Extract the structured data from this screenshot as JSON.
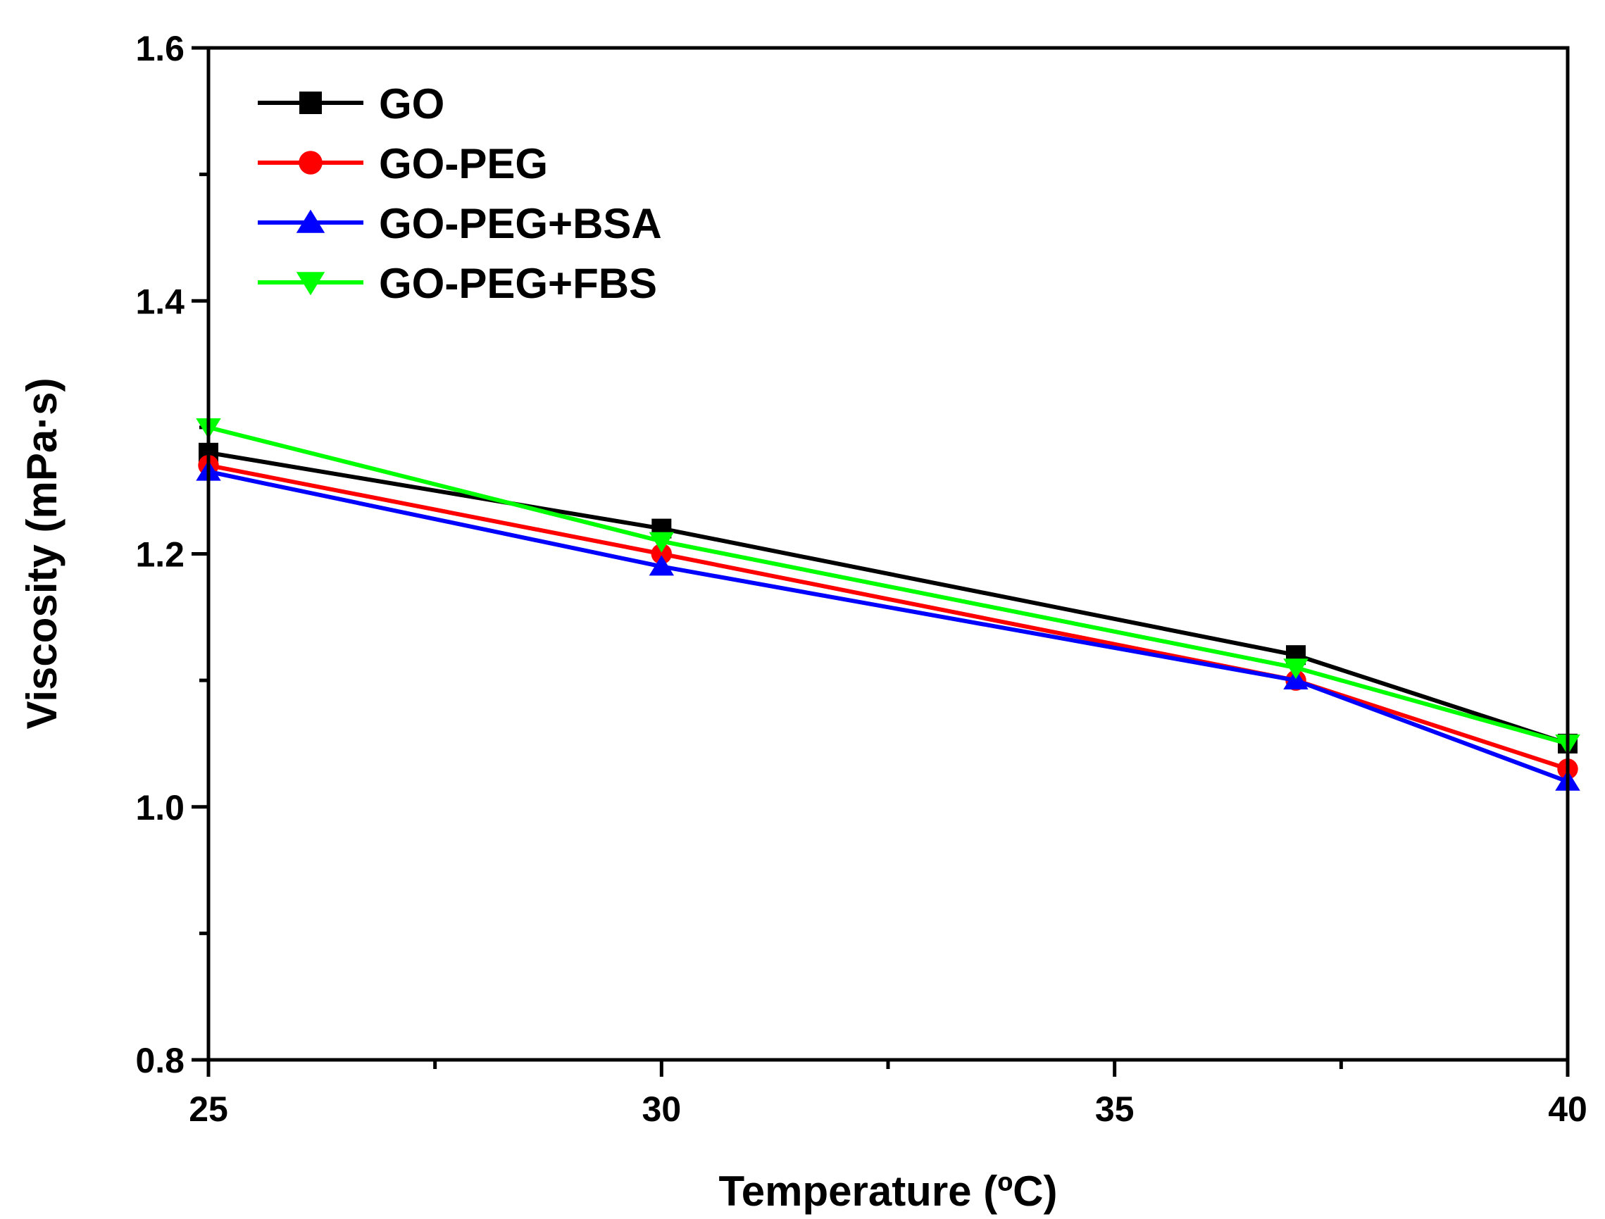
{
  "chart_data": {
    "type": "line",
    "title": "",
    "xlabel": "Temperature (ºC)",
    "ylabel": "Viscosity (mPa·s)",
    "xlim": [
      25,
      40
    ],
    "ylim": [
      0.8,
      1.6
    ],
    "x_major_ticks": [
      25,
      30,
      35,
      40
    ],
    "x_tick_labels": [
      "25",
      "30",
      "35",
      "40"
    ],
    "x_minor_ticks": [
      27.5,
      32.5,
      37.5
    ],
    "y_major_ticks": [
      0.8,
      1.0,
      1.2,
      1.4,
      1.6
    ],
    "y_tick_labels": [
      "0.8",
      "1.0",
      "1.2",
      "1.4",
      "1.6"
    ],
    "y_minor_ticks": [
      0.9,
      1.1,
      1.3,
      1.5
    ],
    "grid": false,
    "legend_position": "top-left",
    "x": [
      25,
      30,
      37,
      40
    ],
    "series": [
      {
        "name": "GO",
        "color": "#000000",
        "marker": "square",
        "values": [
          1.28,
          1.22,
          1.12,
          1.05
        ]
      },
      {
        "name": "GO-PEG",
        "color": "#ff0000",
        "marker": "circle",
        "values": [
          1.27,
          1.2,
          1.1,
          1.03
        ]
      },
      {
        "name": "GO-PEG+BSA",
        "color": "#0000ff",
        "marker": "triangle-up",
        "values": [
          1.265,
          1.19,
          1.1,
          1.02
        ]
      },
      {
        "name": "GO-PEG+FBS",
        "color": "#00ff00",
        "marker": "triangle-down",
        "values": [
          1.3,
          1.21,
          1.11,
          1.05
        ]
      }
    ]
  }
}
